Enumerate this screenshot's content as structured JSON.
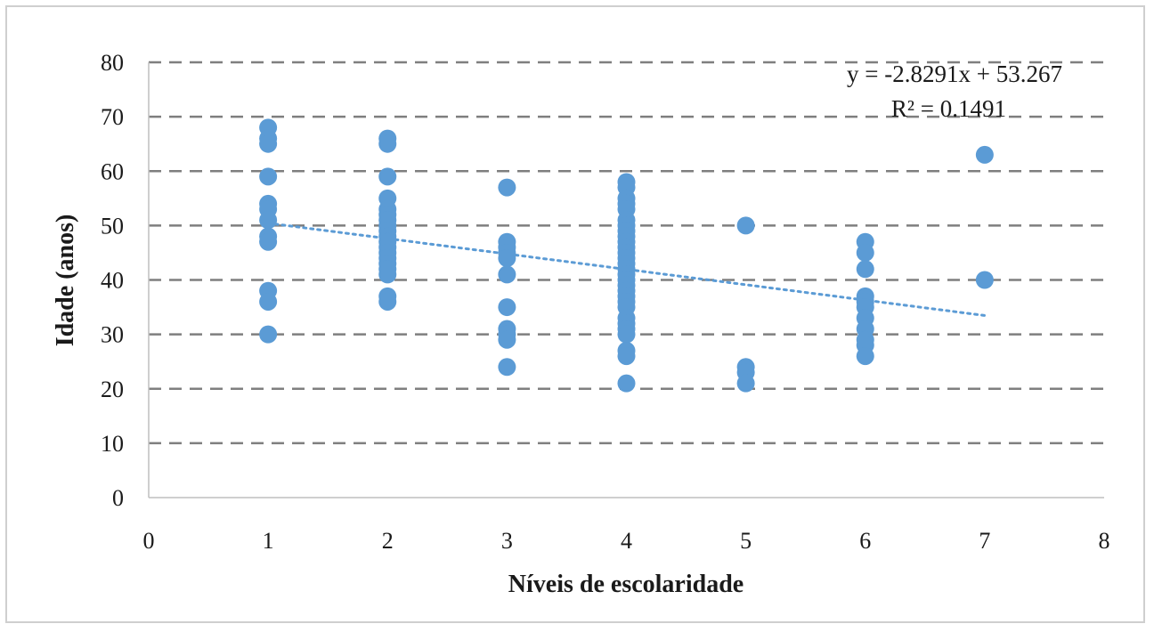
{
  "chart_data": {
    "type": "scatter",
    "xlabel": "Níveis de escolaridade",
    "ylabel": "Idade (anos)",
    "xlim": [
      0,
      8
    ],
    "ylim": [
      0,
      80
    ],
    "xticks": [
      0,
      1,
      2,
      3,
      4,
      5,
      6,
      7,
      8
    ],
    "yticks": [
      0,
      10,
      20,
      30,
      40,
      50,
      60,
      70,
      80
    ],
    "grid": "horizontal dashed",
    "marker_color": "#5b9bd5",
    "trendline_color": "#5b9bd5",
    "gridline_color": "#7f7f7f",
    "trendline": {
      "type": "linear",
      "slope": -2.8291,
      "intercept": 53.267,
      "x_range": [
        1,
        7
      ],
      "equation": "y = -2.8291x + 53.267",
      "r_squared": "R² = 0.1491"
    },
    "series": [
      {
        "points": [
          [
            1,
            68
          ],
          [
            1,
            66
          ],
          [
            1,
            65
          ],
          [
            1,
            59
          ],
          [
            1,
            54
          ],
          [
            1,
            53
          ],
          [
            1,
            51
          ],
          [
            1,
            48
          ],
          [
            1,
            47
          ],
          [
            1,
            38
          ],
          [
            1,
            36
          ],
          [
            1,
            30
          ],
          [
            2,
            66
          ],
          [
            2,
            65
          ],
          [
            2,
            59
          ],
          [
            2,
            55
          ],
          [
            2,
            53
          ],
          [
            2,
            52
          ],
          [
            2,
            51
          ],
          [
            2,
            50
          ],
          [
            2,
            49
          ],
          [
            2,
            48
          ],
          [
            2,
            47
          ],
          [
            2,
            46
          ],
          [
            2,
            45
          ],
          [
            2,
            44
          ],
          [
            2,
            43
          ],
          [
            2,
            42
          ],
          [
            2,
            41
          ],
          [
            2,
            37
          ],
          [
            2,
            36
          ],
          [
            3,
            57
          ],
          [
            3,
            47
          ],
          [
            3,
            46
          ],
          [
            3,
            45
          ],
          [
            3,
            44
          ],
          [
            3,
            41
          ],
          [
            3,
            35
          ],
          [
            3,
            31
          ],
          [
            3,
            30
          ],
          [
            3,
            29
          ],
          [
            3,
            24
          ],
          [
            4,
            58
          ],
          [
            4,
            57
          ],
          [
            4,
            55
          ],
          [
            4,
            54
          ],
          [
            4,
            53
          ],
          [
            4,
            51
          ],
          [
            4,
            50
          ],
          [
            4,
            49
          ],
          [
            4,
            48
          ],
          [
            4,
            47
          ],
          [
            4,
            46
          ],
          [
            4,
            45
          ],
          [
            4,
            44
          ],
          [
            4,
            43
          ],
          [
            4,
            42
          ],
          [
            4,
            41
          ],
          [
            4,
            40
          ],
          [
            4,
            39
          ],
          [
            4,
            38
          ],
          [
            4,
            37
          ],
          [
            4,
            36
          ],
          [
            4,
            35
          ],
          [
            4,
            33
          ],
          [
            4,
            32
          ],
          [
            4,
            31
          ],
          [
            4,
            30
          ],
          [
            4,
            27
          ],
          [
            4,
            26
          ],
          [
            4,
            21
          ],
          [
            5,
            50
          ],
          [
            5,
            24
          ],
          [
            5,
            23
          ],
          [
            5,
            21
          ],
          [
            6,
            47
          ],
          [
            6,
            45
          ],
          [
            6,
            42
          ],
          [
            6,
            37
          ],
          [
            6,
            36
          ],
          [
            6,
            35
          ],
          [
            6,
            33
          ],
          [
            6,
            31
          ],
          [
            6,
            29
          ],
          [
            6,
            28
          ],
          [
            6,
            26
          ],
          [
            7,
            63
          ],
          [
            7,
            40
          ]
        ]
      }
    ]
  }
}
